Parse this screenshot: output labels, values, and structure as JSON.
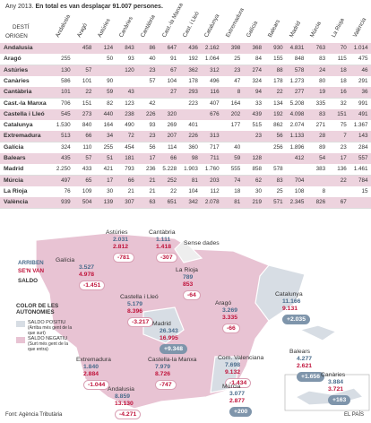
{
  "header": {
    "year_note": "Any 2013.",
    "summary": "En total es van desplaçar 91.007 persones."
  },
  "table": {
    "destination_label": "DESTÍ",
    "origin_label": "ORIGEN",
    "columns": [
      "Andalusia",
      "Aragó",
      "Astúries",
      "Canàries",
      "Cantàbria",
      "Cast.-la Manxa",
      "Cast. i Lleó",
      "Catalunya",
      "Extremadura",
      "Galícia",
      "Balears",
      "Madrid",
      "Múrcia",
      "La Rioja",
      "València"
    ],
    "rows": [
      {
        "origin": "Andalusia",
        "cells": [
          null,
          "458",
          "124",
          "843",
          "86",
          "647",
          "436",
          "2.162",
          "398",
          "368",
          "930",
          "4.831",
          "763",
          "70",
          "1.014"
        ]
      },
      {
        "origin": "Aragó",
        "cells": [
          "255",
          null,
          "50",
          "93",
          "40",
          "91",
          "192",
          "1.064",
          "25",
          "84",
          "155",
          "848",
          "83",
          "115",
          "475"
        ]
      },
      {
        "origin": "Astúries",
        "cells": [
          "130",
          "57",
          null,
          "120",
          "23",
          "67",
          "362",
          "312",
          "23",
          "274",
          "88",
          "578",
          "24",
          "18",
          "46"
        ]
      },
      {
        "origin": "Canàries",
        "cells": [
          "586",
          "101",
          "90",
          null,
          "57",
          "104",
          "178",
          "496",
          "47",
          "324",
          "178",
          "1.273",
          "80",
          "18",
          "291"
        ]
      },
      {
        "origin": "Cantàbria",
        "cells": [
          "101",
          "22",
          "59",
          "43",
          null,
          "27",
          "293",
          "116",
          "8",
          "94",
          "22",
          "277",
          "19",
          "16",
          "36"
        ]
      },
      {
        "origin": "Cast.-la Manxa",
        "cells": [
          "706",
          "151",
          "82",
          "123",
          "42",
          null,
          "223",
          "407",
          "164",
          "33",
          "134",
          "5.208",
          "335",
          "32",
          "991"
        ]
      },
      {
        "origin": "Castella i Lleó",
        "cells": [
          "545",
          "273",
          "440",
          "238",
          "226",
          "320",
          null,
          "676",
          "202",
          "439",
          "192",
          "4.098",
          "83",
          "151",
          "491"
        ]
      },
      {
        "origin": "Catalunya",
        "cells": [
          "1.530",
          "840",
          "164",
          "490",
          "93",
          "269",
          "401",
          null,
          "177",
          "515",
          "862",
          "2.074",
          "271",
          "75",
          "1.367"
        ]
      },
      {
        "origin": "Extremadura",
        "cells": [
          "513",
          "66",
          "34",
          "72",
          "23",
          "207",
          "226",
          "313",
          null,
          "23",
          "56",
          "1.133",
          "28",
          "7",
          "143"
        ]
      },
      {
        "origin": "Galícia",
        "cells": [
          "324",
          "110",
          "255",
          "454",
          "56",
          "114",
          "360",
          "717",
          "40",
          null,
          "256",
          "1.896",
          "89",
          "23",
          "284"
        ]
      },
      {
        "origin": "Balears",
        "cells": [
          "435",
          "57",
          "51",
          "181",
          "17",
          "66",
          "98",
          "711",
          "59",
          "128",
          null,
          "412",
          "54",
          "17",
          "557"
        ]
      },
      {
        "origin": "Madrid",
        "cells": [
          "2.250",
          "433",
          "421",
          "793",
          "236",
          "5.228",
          "1.903",
          "1.760",
          "555",
          "858",
          "578",
          null,
          "383",
          "136",
          "1.461"
        ]
      },
      {
        "origin": "Múrcia",
        "cells": [
          "497",
          "65",
          "17",
          "66",
          "21",
          "252",
          "81",
          "203",
          "74",
          "62",
          "83",
          "704",
          null,
          "22",
          "784"
        ]
      },
      {
        "origin": "La Rioja",
        "cells": [
          "76",
          "109",
          "30",
          "21",
          "21",
          "22",
          "104",
          "112",
          "18",
          "30",
          "25",
          "108",
          "8",
          null,
          "15"
        ]
      },
      {
        "origin": "València",
        "cells": [
          "939",
          "504",
          "139",
          "307",
          "63",
          "651",
          "342",
          "2.078",
          "81",
          "219",
          "571",
          "2.345",
          "826",
          "67",
          null
        ]
      }
    ]
  },
  "map": {
    "no_data_label": "Sense dades",
    "regions": [
      {
        "name": "Astúries",
        "arriben": "2.031",
        "se_n_van": "2.812",
        "saldo": "-781"
      },
      {
        "name": "Cantàbria",
        "arriben": "1.111",
        "se_n_van": "1.418",
        "saldo": "-307"
      },
      {
        "name": "Galícia",
        "arriben": "3.527",
        "se_n_van": "4.978",
        "saldo": "-1.451"
      },
      {
        "name": "La Rioja",
        "arriben": "789",
        "se_n_van": "853",
        "saldo": "-64"
      },
      {
        "name": "Castella i Lleó",
        "arriben": "5.179",
        "se_n_van": "8.396",
        "saldo": "-3.217"
      },
      {
        "name": "Aragó",
        "arriben": "3.269",
        "se_n_van": "3.335",
        "saldo": "-66"
      },
      {
        "name": "Catalunya",
        "arriben": "11.166",
        "se_n_van": "9.131",
        "saldo": "+2.035"
      },
      {
        "name": "Madrid",
        "arriben": "26.343",
        "se_n_van": "16.995",
        "saldo": "+9.348"
      },
      {
        "name": "Extremadura",
        "arriben": "1.840",
        "se_n_van": "2.884",
        "saldo": "-1.044"
      },
      {
        "name": "Castella-la Manxa",
        "arriben": "7.979",
        "se_n_van": "8.726",
        "saldo": "-747"
      },
      {
        "name": "Com. Valenciana",
        "arriben": "7.698",
        "se_n_van": "9.132",
        "saldo": "-1.434"
      },
      {
        "name": "Balears",
        "arriben": "4.277",
        "se_n_van": "2.621",
        "saldo": "+1.656"
      },
      {
        "name": "Múrcia",
        "arriben": "3.077",
        "se_n_van": "2.877",
        "saldo": "+200"
      },
      {
        "name": "Andalusia",
        "arriben": "8.859",
        "se_n_van": "13.130",
        "saldo": "-4.271"
      },
      {
        "name": "Canàries",
        "arriben": "3.884",
        "se_n_van": "3.721",
        "saldo": "+163"
      }
    ]
  },
  "legend": {
    "arriben": "ARRIBEN",
    "se_n_van": "SE'N VAN",
    "saldo": "SALDO",
    "color_title": "COLOR DE LES AUTONOMIES",
    "positive": "SALDO POSITIU",
    "positive_note": "(Arriba més gent de la que surt)",
    "negative": "SALDO NEGATIU",
    "negative_note": "(Surt més gent de la que entra)"
  },
  "footer": {
    "source": "Font: Agència Tributària",
    "brand": "EL PAÍS"
  }
}
